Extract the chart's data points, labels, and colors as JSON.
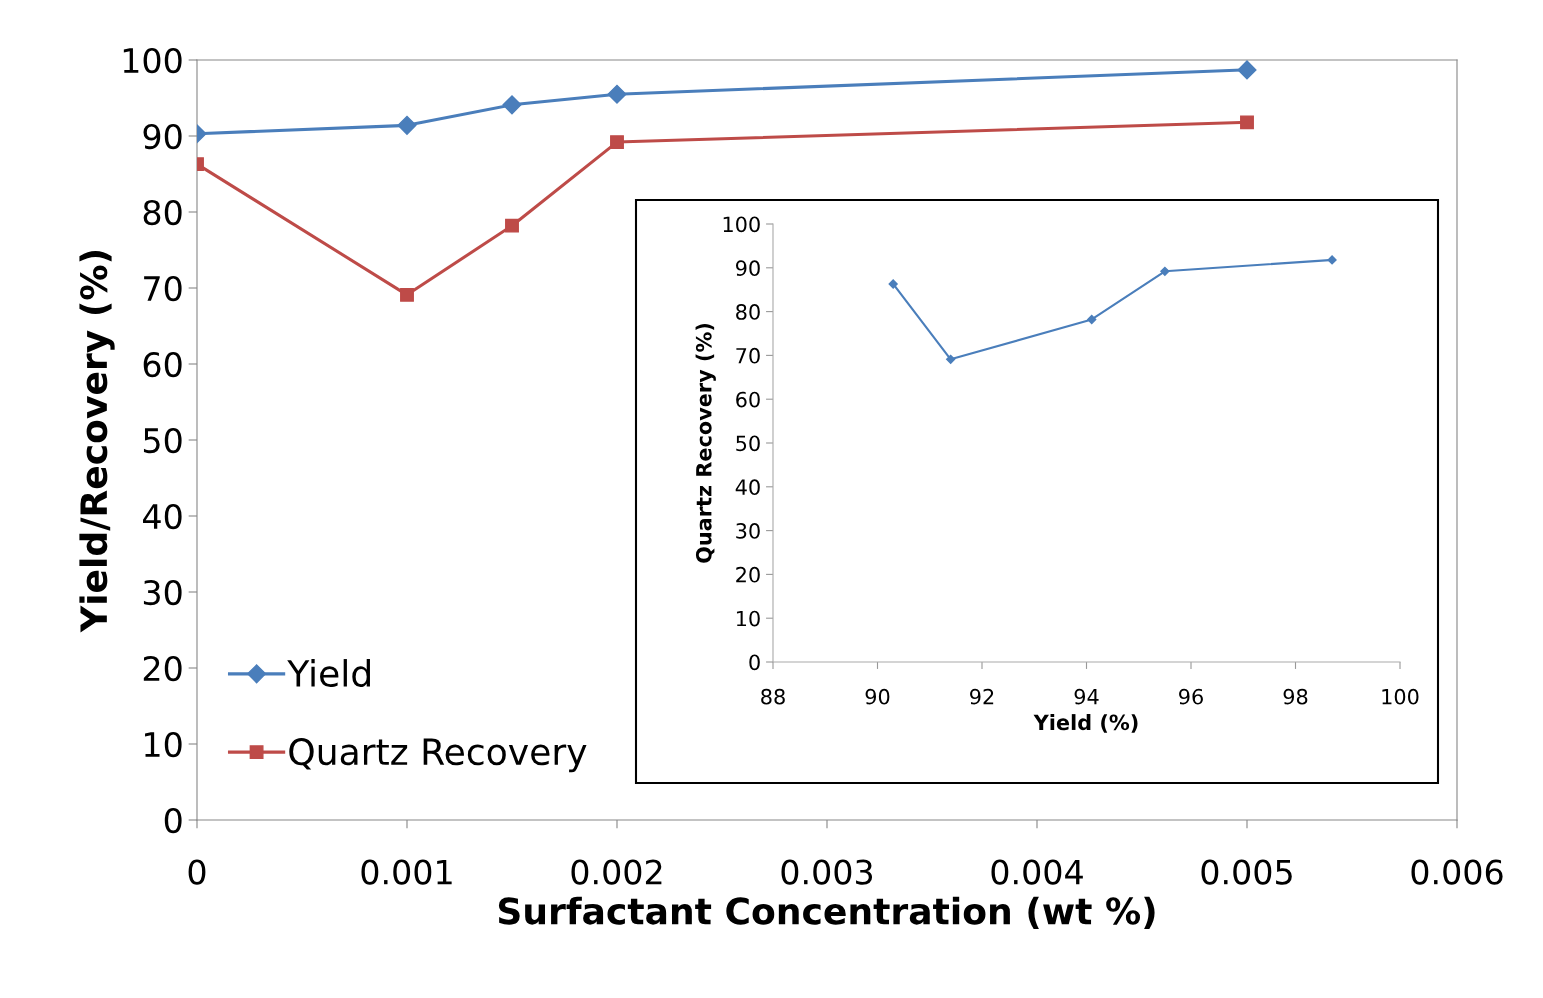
{
  "chart_data": [
    {
      "type": "line",
      "xlabel": "Surfactant Concentration (wt %)",
      "ylabel": "Yield/Recovery (%)",
      "x": [
        0,
        0.001,
        0.0015,
        0.002,
        0.005
      ],
      "series": [
        {
          "name": "Yield",
          "color": "#4a7ebb",
          "values": [
            90.3,
            91.4,
            94.1,
            95.5,
            98.7
          ],
          "marker": "diamond"
        },
        {
          "name": "Quartz Recovery",
          "color": "#be4b48",
          "values": [
            86.3,
            69.1,
            78.2,
            89.2,
            91.8
          ],
          "marker": "square"
        }
      ],
      "xlim": [
        0,
        0.006
      ],
      "xticks": [
        0,
        0.001,
        0.002,
        0.003,
        0.004,
        0.005,
        0.006
      ],
      "ylim": [
        0,
        100
      ],
      "yticks": [
        0,
        10,
        20,
        30,
        40,
        50,
        60,
        70,
        80,
        90,
        100
      ],
      "grid": false,
      "legend": "bottom left"
    },
    {
      "type": "line",
      "xlabel": "Yield (%)",
      "ylabel": "Quartz Recovery (%)",
      "x": [
        90.3,
        91.4,
        94.1,
        95.5,
        98.7
      ],
      "series": [
        {
          "color": "#4a7ebb",
          "values": [
            86.3,
            69.1,
            78.2,
            89.2,
            91.8
          ],
          "marker": "diamond"
        }
      ],
      "xlim": [
        88,
        100
      ],
      "xticks": [
        88,
        90,
        92,
        94,
        96,
        98,
        100
      ],
      "ylim": [
        0,
        100
      ],
      "yticks": [
        0,
        10,
        20,
        30,
        40,
        50,
        60,
        70,
        80,
        90,
        100
      ],
      "grid": false,
      "legend": false
    }
  ]
}
